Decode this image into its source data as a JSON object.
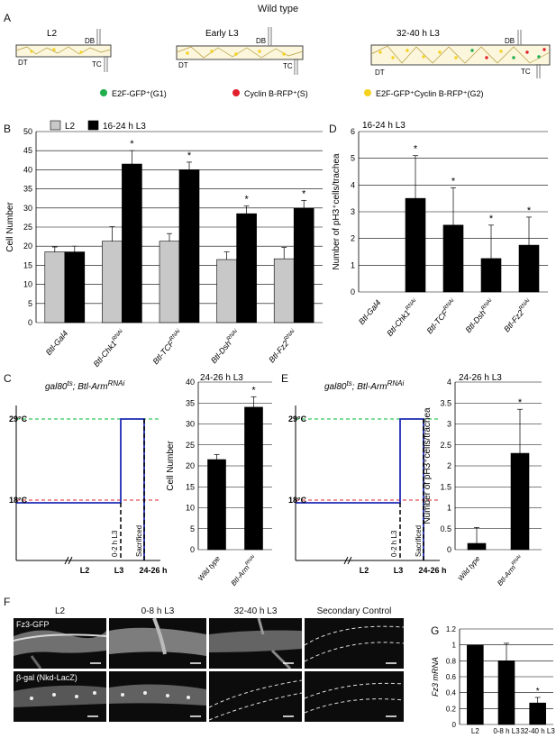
{
  "header": {
    "title": "Wild type"
  },
  "panelA": {
    "stages": [
      {
        "title": "L2",
        "labels": {
          "db": "DB",
          "dt": "DT",
          "tc": "TC"
        }
      },
      {
        "title": "Early L3",
        "labels": {
          "db": "DB",
          "dt": "DT",
          "tc": "TC"
        }
      },
      {
        "title": "32-40 h L3",
        "labels": {
          "db": "DB",
          "dt": "DT",
          "tc": "TC"
        }
      }
    ],
    "legend": [
      {
        "label": "E2F-GFP⁺(G1)",
        "color": "#1fae4b"
      },
      {
        "label": "Cyclin B-RFP⁺(S)",
        "color": "#e0202a"
      },
      {
        "label": "E2F-GFP⁺Cyclin B-RFP⁺(G2)",
        "color": "#f5d21e"
      }
    ]
  },
  "panel_letters": {
    "a": "A",
    "b": "B",
    "c": "C",
    "d": "D",
    "e": "E",
    "f": "F",
    "g": "G"
  },
  "colors": {
    "black": "#000000",
    "gray": "#c8c8c8",
    "blue": "#1f2bb5",
    "green_dash": "#34c759",
    "red_dash": "#e0505a"
  },
  "chart_data": [
    {
      "id": "B",
      "type": "bar",
      "categories": [
        "Btl-Gal4",
        "Btl-Chk1 RNAi",
        "Btl-TCF RNAi",
        "Btl-Dsh RNAi",
        "Btl-Fz2 RNAi"
      ],
      "series": [
        {
          "name": "L2",
          "values": [
            18.5,
            21.3,
            21.3,
            16.5,
            16.7
          ],
          "errors": [
            1.3,
            3.8,
            2.0,
            2.0,
            3.0
          ],
          "color": "#c8c8c8"
        },
        {
          "name": "16-24 h L3",
          "values": [
            18.5,
            41.5,
            40.0,
            28.5,
            30.0
          ],
          "errors": [
            1.5,
            3.5,
            2.0,
            2.0,
            2.0
          ],
          "color": "#000000"
        }
      ],
      "significant": [
        false,
        true,
        true,
        true,
        true
      ],
      "ylabel": "Cell Number",
      "ylim": [
        0,
        50
      ],
      "yticks": [
        "0",
        "5",
        "10",
        "15",
        "20",
        "25",
        "30",
        "35",
        "40",
        "45",
        "50"
      ],
      "grid": true,
      "legend": "top-left"
    },
    {
      "id": "D",
      "type": "bar",
      "title": "16-24 h L3",
      "categories": [
        "Btl-Gal4",
        "Btl-Chk1 RNAi",
        "Btl-TCF RNAi",
        "Btl-Dsh RNAi",
        "Btl-Fz2 RNAi"
      ],
      "values": [
        0,
        3.5,
        2.5,
        1.25,
        1.75
      ],
      "errors": [
        0,
        1.6,
        1.4,
        1.25,
        1.05
      ],
      "significant": [
        false,
        true,
        true,
        true,
        true
      ],
      "ylabel": "Number of pH3⁺cells/trachea",
      "ylim": [
        0,
        6
      ],
      "yticks": [
        "0",
        "1",
        "2",
        "3",
        "4",
        "5",
        "6"
      ],
      "grid": true
    },
    {
      "id": "C-bar",
      "type": "bar",
      "title": "24-26 h L3",
      "categories": [
        "Wild type",
        "Btl-Arm RNAi"
      ],
      "values": [
        21.5,
        34.0
      ],
      "errors": [
        1.2,
        2.5
      ],
      "significant": [
        false,
        true
      ],
      "ylabel": "Cell Number",
      "ylim": [
        0,
        40
      ],
      "yticks": [
        "0",
        "5",
        "10",
        "15",
        "20",
        "25",
        "30",
        "35",
        "40"
      ],
      "grid": true
    },
    {
      "id": "E-bar",
      "type": "bar",
      "title": "24-26 h L3",
      "categories": [
        "Wild type",
        "Btl-Arm RNAi"
      ],
      "values": [
        0.15,
        2.3
      ],
      "errors": [
        0.38,
        1.05
      ],
      "significant": [
        false,
        true
      ],
      "ylabel": "Number of pH3⁺cells/trachea",
      "ylim": [
        0,
        4
      ],
      "yticks": [
        "0",
        "0.5",
        "1",
        "1.5",
        "2",
        "2.5",
        "3",
        "3.5",
        "4"
      ],
      "grid": true
    },
    {
      "id": "G",
      "type": "bar",
      "categories": [
        "L2",
        "0-8 h L3",
        "32-40 h L3"
      ],
      "values": [
        1.0,
        0.8,
        0.27
      ],
      "errors": [
        0,
        0.22,
        0.07
      ],
      "significant": [
        false,
        false,
        true
      ],
      "ylabel": "Fz3 mRNA",
      "ylim": [
        0,
        1.2
      ],
      "yticks": [
        "0",
        "0.2",
        "0.4",
        "0.6",
        "0.8",
        "1",
        "1.2"
      ],
      "grid": true
    }
  ],
  "schematic": {
    "genotype": "gal80ts; Btl-Arm RNAi",
    "t_high": "29°C",
    "t_low": "18°C",
    "x_ticks": [
      "L2",
      "L3",
      "24-26 h"
    ],
    "vlabels": [
      "0-2 h L3",
      "Sacrificed"
    ]
  },
  "panelF": {
    "col_headers": [
      "L2",
      "0-8 h L3",
      "32-40 h L3",
      "Secondary Control"
    ],
    "row_labels": [
      "Fz3-GFP",
      "β-gal (Nkd-LacZ)"
    ]
  },
  "misc": {
    "star": "*",
    "rnai": "RNAi",
    "ts": "ts",
    "sup_plus": "+"
  }
}
